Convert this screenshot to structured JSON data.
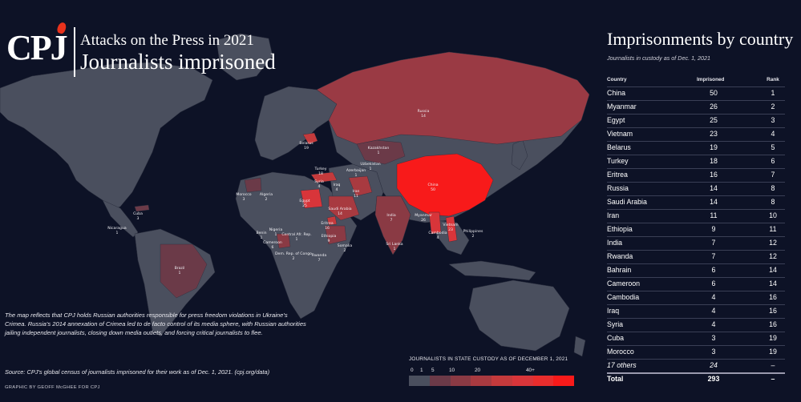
{
  "header": {
    "logo_text": "CPJ",
    "title_line1": "Attacks on the Press in 2021",
    "title_line2": "Journalists imprisoned"
  },
  "map": {
    "labels": [
      {
        "name": "Russia",
        "value": "14"
      },
      {
        "name": "China",
        "value": "50"
      },
      {
        "name": "Belarus",
        "value": "19"
      },
      {
        "name": "Kazakhstan",
        "value": "1"
      },
      {
        "name": "Uzbekistan",
        "value": "1"
      },
      {
        "name": "Azerbaijan",
        "value": "1"
      },
      {
        "name": "Turkey",
        "value": "18"
      },
      {
        "name": "Syria",
        "value": "4"
      },
      {
        "name": "Iraq",
        "value": "4"
      },
      {
        "name": "Iran",
        "value": "11"
      },
      {
        "name": "Saudi Arabia",
        "value": "14"
      },
      {
        "name": "Egypt",
        "value": "25"
      },
      {
        "name": "Eritrea",
        "value": "16"
      },
      {
        "name": "Ethiopia",
        "value": "9"
      },
      {
        "name": "Somalia",
        "value": "2"
      },
      {
        "name": "Rwanda",
        "value": "7"
      },
      {
        "name": "India",
        "value": "7"
      },
      {
        "name": "Sri Lanka",
        "value": "1"
      },
      {
        "name": "Myanmar",
        "value": "26"
      },
      {
        "name": "Vietnam",
        "value": "23"
      },
      {
        "name": "Cambodia",
        "value": "4"
      },
      {
        "name": "Philippines",
        "value": "2"
      },
      {
        "name": "Morocco",
        "value": "3"
      },
      {
        "name": "Algeria",
        "value": "2"
      },
      {
        "name": "Benin",
        "value": "1"
      },
      {
        "name": "Nigeria",
        "value": "1"
      },
      {
        "name": "Cameroon",
        "value": "6"
      },
      {
        "name": "Central Afr. Rep.",
        "value": "1"
      },
      {
        "name": "Dem. Rep. of Congo",
        "value": "2"
      },
      {
        "name": "Cuba",
        "value": "3"
      },
      {
        "name": "Nicaragua",
        "value": "1"
      },
      {
        "name": "Brazil",
        "value": "1"
      }
    ]
  },
  "note": "The map reflects that CPJ holds Russian authorities responsible for press freedom violations in Ukraine's Crimea. Russia's 2014 annexation of Crimea led to de facto control of its media sphere, with Russian authorities jailing independent journalists, closing down media outlets, and forcing critical journalists to flee.",
  "source": "Source: CPJ's global census of journalists imprisoned for their work as of Dec. 1, 2021. (cpj.org/data)",
  "credit": "GRAPHIC BY GEOFF McGHEE FOR CPJ",
  "legend": {
    "title": "JOURNALISTS IN STATE CUSTODY AS OF DECEMBER 1, 2021",
    "tick_0": "0",
    "tick_1": "1",
    "tick_5": "5",
    "tick_10": "10",
    "tick_20": "20",
    "tick_40": "40+",
    "colors": [
      "#4a4f5e",
      "#6b3a48",
      "#8a3a44",
      "#a83a40",
      "#c43a3c",
      "#d8353a",
      "#e82d2d",
      "#f81a1a"
    ]
  },
  "colors": {
    "background": "#0d1226",
    "land": "#4a4f5e",
    "accent": "#e8321c"
  },
  "table": {
    "title": "Imprisonments by country",
    "subtitle": "Journalists in custody as of Dec. 1, 2021",
    "col_country": "Country",
    "col_imprisoned": "Imprisoned",
    "col_rank": "Rank",
    "rows": [
      {
        "country": "China",
        "imprisoned": "50",
        "rank": "1"
      },
      {
        "country": "Myanmar",
        "imprisoned": "26",
        "rank": "2"
      },
      {
        "country": "Egypt",
        "imprisoned": "25",
        "rank": "3"
      },
      {
        "country": "Vietnam",
        "imprisoned": "23",
        "rank": "4"
      },
      {
        "country": "Belarus",
        "imprisoned": "19",
        "rank": "5"
      },
      {
        "country": "Turkey",
        "imprisoned": "18",
        "rank": "6"
      },
      {
        "country": "Eritrea",
        "imprisoned": "16",
        "rank": "7"
      },
      {
        "country": "Russia",
        "imprisoned": "14",
        "rank": "8"
      },
      {
        "country": "Saudi Arabia",
        "imprisoned": "14",
        "rank": "8"
      },
      {
        "country": "Iran",
        "imprisoned": "11",
        "rank": "10"
      },
      {
        "country": "Ethiopia",
        "imprisoned": "9",
        "rank": "11"
      },
      {
        "country": "India",
        "imprisoned": "7",
        "rank": "12"
      },
      {
        "country": "Rwanda",
        "imprisoned": "7",
        "rank": "12"
      },
      {
        "country": "Bahrain",
        "imprisoned": "6",
        "rank": "14"
      },
      {
        "country": "Cameroon",
        "imprisoned": "6",
        "rank": "14"
      },
      {
        "country": "Cambodia",
        "imprisoned": "4",
        "rank": "16"
      },
      {
        "country": "Iraq",
        "imprisoned": "4",
        "rank": "16"
      },
      {
        "country": "Syria",
        "imprisoned": "4",
        "rank": "16"
      },
      {
        "country": "Cuba",
        "imprisoned": "3",
        "rank": "19"
      },
      {
        "country": "Morocco",
        "imprisoned": "3",
        "rank": "19"
      }
    ],
    "others": {
      "country": "17 others",
      "imprisoned": "24",
      "rank": "–"
    },
    "total": {
      "country": "Total",
      "imprisoned": "293",
      "rank": "–"
    }
  }
}
